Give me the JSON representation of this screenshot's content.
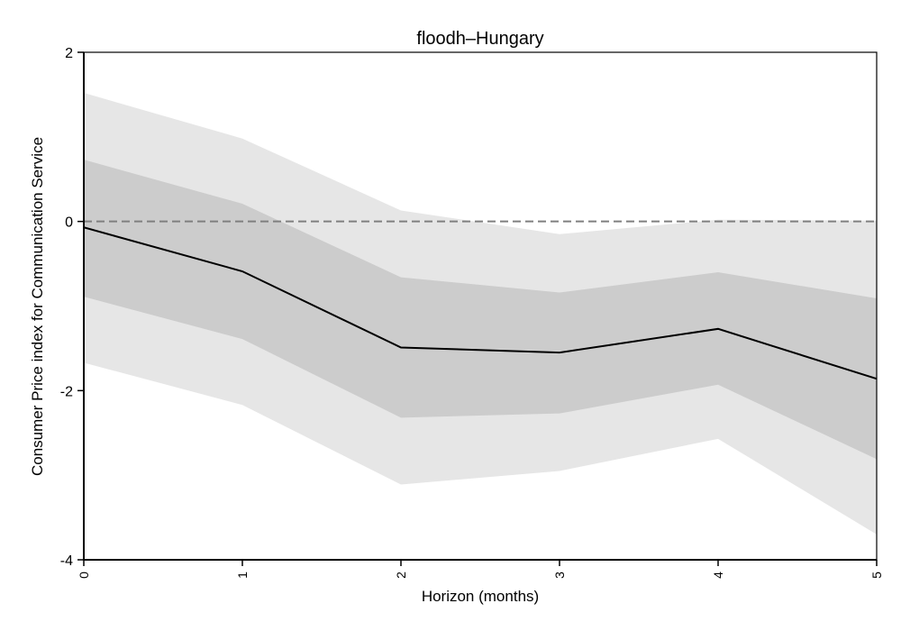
{
  "chart_data": {
    "type": "line",
    "title": "floodh–Hungary",
    "xlabel": "Horizon (months)",
    "ylabel": "Consumer Price index for Communication Service",
    "x": [
      0,
      1,
      2,
      3,
      4,
      5
    ],
    "xticks": [
      "0",
      "1",
      "2",
      "3",
      "4",
      "5"
    ],
    "xlim": [
      0,
      5
    ],
    "yticks": [
      "2",
      "0",
      "-2",
      "-4"
    ],
    "ylim": [
      -4,
      2
    ],
    "series": [
      {
        "role": "estimate",
        "values": [
          -0.07,
          -0.59,
          -1.49,
          -1.55,
          -1.27,
          -1.86
        ],
        "color": "#000000"
      }
    ],
    "bands": [
      {
        "role": "outer-interval",
        "upper": [
          1.52,
          0.98,
          0.13,
          -0.15,
          0.02,
          0.01
        ],
        "lower": [
          -1.67,
          -2.17,
          -3.11,
          -2.95,
          -2.57,
          -3.7
        ],
        "color": "#e6e6e6"
      },
      {
        "role": "inner-interval",
        "upper": [
          0.73,
          0.21,
          -0.66,
          -0.84,
          -0.6,
          -0.91
        ],
        "lower": [
          -0.89,
          -1.39,
          -2.32,
          -2.27,
          -1.93,
          -2.81
        ],
        "color": "#cccccc"
      }
    ],
    "reference_line": {
      "y": 0,
      "style": "dashed",
      "color": "#808080"
    },
    "grid": false,
    "legend": "none"
  }
}
